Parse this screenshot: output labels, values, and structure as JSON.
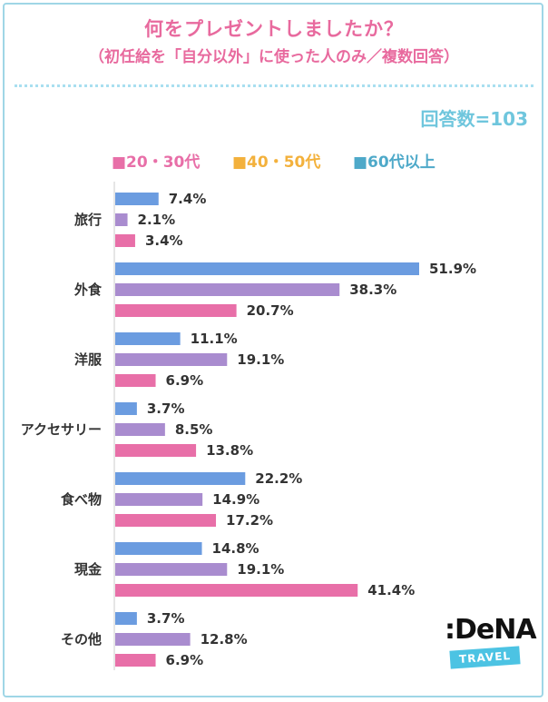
{
  "title": "何をプレゼントしましたか？",
  "subtitle": "（初任給を「自分以外」に使った人のみ／複数回答）",
  "respondents": "回答数=103",
  "legend": [
    {
      "label": "■20・30代",
      "color": "#e86fa8"
    },
    {
      "label": "■40・50代",
      "color": "#f3b13c"
    },
    {
      "label": "■60代以上",
      "color": "#4ea9c9"
    }
  ],
  "colors": {
    "title": "#e86a9e",
    "bar_blue": "#6b9ce0",
    "bar_purple": "#a98ccf",
    "bar_pink": "#e86fa8",
    "axis": "#cccccc",
    "border": "#9fd6e6"
  },
  "chart_data": {
    "type": "bar",
    "orientation": "horizontal",
    "categories": [
      "旅行",
      "外食",
      "洋服",
      "アクセサリー",
      "食べ物",
      "現金",
      "その他"
    ],
    "series": [
      {
        "values": [
          7.4,
          51.9,
          11.1,
          3.7,
          22.2,
          14.8,
          3.7
        ],
        "color": "#6b9ce0"
      },
      {
        "values": [
          2.1,
          38.3,
          19.1,
          8.5,
          14.9,
          19.1,
          12.8
        ],
        "color": "#a98ccf"
      },
      {
        "values": [
          3.4,
          20.7,
          6.9,
          13.8,
          17.2,
          41.4,
          6.9
        ],
        "color": "#e86fa8"
      }
    ],
    "value_labels": [
      [
        "7.4%",
        "51.9%",
        "11.1%",
        "3.7%",
        "22.2%",
        "14.8%",
        "3.7%"
      ],
      [
        "2.1%",
        "38.3%",
        "19.1%",
        "8.5%",
        "14.9%",
        "19.1%",
        "12.8%"
      ],
      [
        "3.4%",
        "20.7%",
        "6.9%",
        "13.8%",
        "17.2%",
        "41.4%",
        "6.9%"
      ]
    ],
    "xlim": [
      0,
      52
    ],
    "grid": false,
    "legend_position": "top"
  },
  "logo": {
    "main": ":DeNA",
    "sub": "TRAVEL"
  }
}
